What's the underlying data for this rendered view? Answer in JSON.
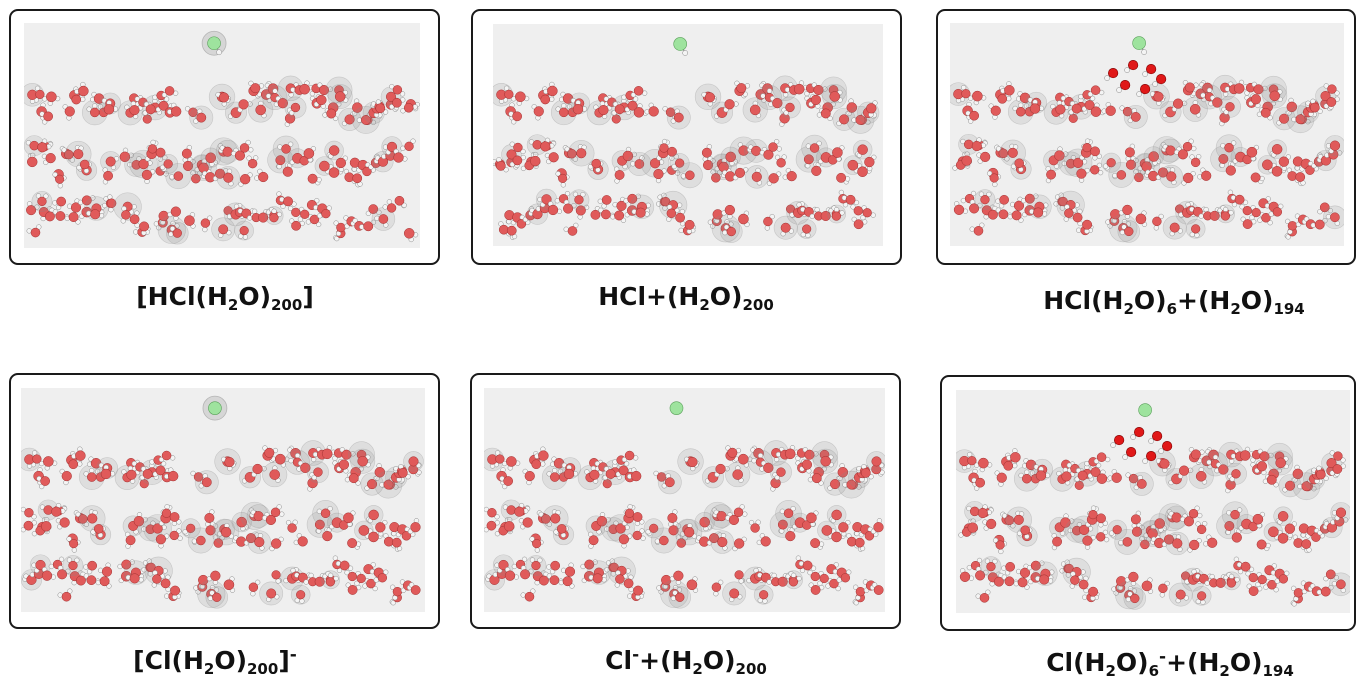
{
  "palette": {
    "background": "#efefef",
    "oxygen": "#e05a5a",
    "oxygen_highlight": "#e01818",
    "hydrogen": "#f4f4f4",
    "chlorine": "#9ee39e",
    "shell": "#8a8a8a",
    "frame": "#1a1a1a"
  },
  "panels": [
    {
      "caption": {
        "parts": [
          {
            "t": "[HCl(H"
          },
          {
            "t": "2",
            "sub": true
          },
          {
            "t": "O)"
          },
          {
            "t": "200",
            "sub": true
          },
          {
            "t": "]"
          }
        ]
      },
      "species": "HCl",
      "bonded_h": true,
      "highlight_cluster": false,
      "chlorine_shell": true
    },
    {
      "caption": {
        "parts": [
          {
            "t": "HCl+(H"
          },
          {
            "t": "2",
            "sub": true
          },
          {
            "t": "O)"
          },
          {
            "t": "200",
            "sub": true
          }
        ]
      },
      "species": "HCl",
      "bonded_h": true,
      "highlight_cluster": false,
      "chlorine_shell": false
    },
    {
      "caption": {
        "parts": [
          {
            "t": "HCl(H"
          },
          {
            "t": "2",
            "sub": true
          },
          {
            "t": "O)"
          },
          {
            "t": "6",
            "sub": true
          },
          {
            "t": "+(H"
          },
          {
            "t": "2",
            "sub": true
          },
          {
            "t": "O)"
          },
          {
            "t": "194",
            "sub": true
          }
        ]
      },
      "species": "HCl",
      "bonded_h": true,
      "highlight_cluster": true,
      "chlorine_shell": false
    },
    {
      "caption": {
        "parts": [
          {
            "t": "[Cl(H"
          },
          {
            "t": "2",
            "sub": true
          },
          {
            "t": "O)"
          },
          {
            "t": "200",
            "sub": true
          },
          {
            "t": "]"
          },
          {
            "t": "-",
            "sup": true
          }
        ]
      },
      "species": "Cl-",
      "bonded_h": false,
      "highlight_cluster": false,
      "chlorine_shell": true
    },
    {
      "caption": {
        "parts": [
          {
            "t": "Cl"
          },
          {
            "t": "-",
            "sup": true
          },
          {
            "t": "+(H"
          },
          {
            "t": "2",
            "sub": true
          },
          {
            "t": "O)"
          },
          {
            "t": "200",
            "sub": true
          }
        ]
      },
      "species": "Cl-",
      "bonded_h": false,
      "highlight_cluster": false,
      "chlorine_shell": false
    },
    {
      "caption": {
        "parts": [
          {
            "t": "Cl(H"
          },
          {
            "t": "2",
            "sub": true
          },
          {
            "t": "O)"
          },
          {
            "t": "6",
            "sub": true
          },
          {
            "t": "-",
            "sup": true
          },
          {
            "t": "+(H"
          },
          {
            "t": "2",
            "sub": true
          },
          {
            "t": "O)"
          },
          {
            "t": "194",
            "sub": true
          }
        ]
      },
      "species": "Cl-",
      "bonded_h": false,
      "highlight_cluster": true,
      "chlorine_shell": false
    }
  ]
}
